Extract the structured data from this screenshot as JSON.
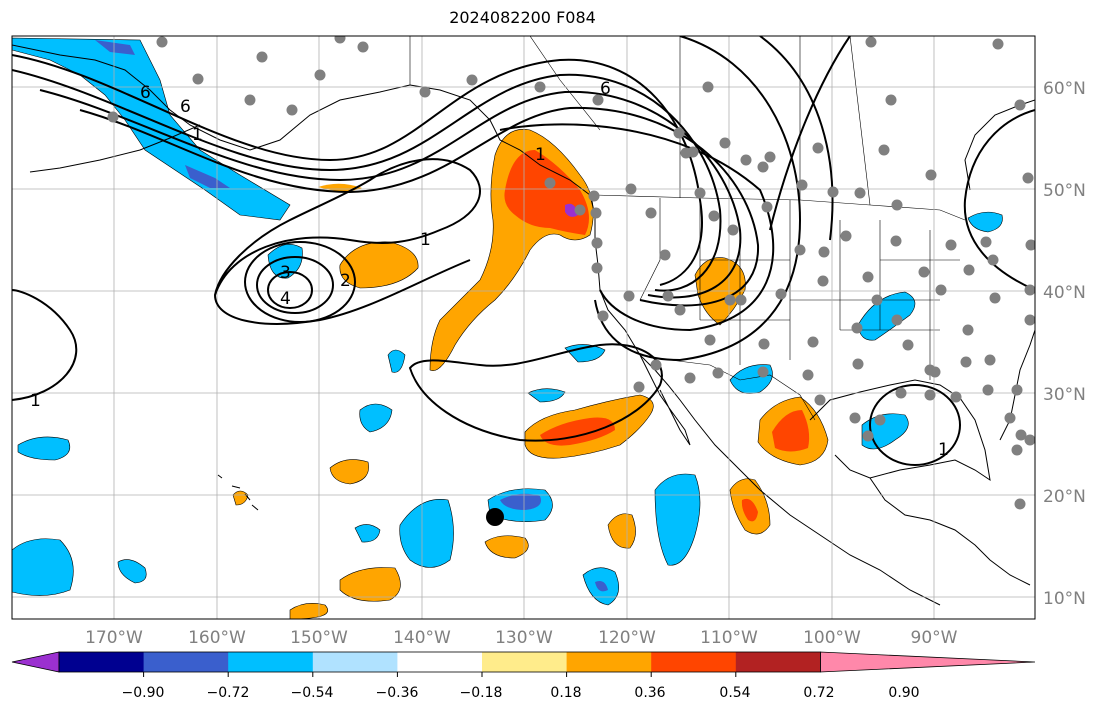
{
  "title": "2024082200 F084",
  "lat_labels": [
    "60°N",
    "50°N",
    "40°N",
    "30°N",
    "20°N",
    "10°N"
  ],
  "lon_labels": [
    "170°W",
    "160°W",
    "150°W",
    "140°W",
    "130°W",
    "120°W",
    "110°W",
    "100°W",
    "90°W"
  ],
  "colorbar": {
    "ticks": [
      "−0.90",
      "−0.72",
      "−0.54",
      "−0.36",
      "−0.18",
      "0.18",
      "0.36",
      "0.54",
      "0.72",
      "0.90"
    ],
    "colors": [
      "#9b30d0",
      "#000090",
      "#3a5fcd",
      "#00bfff",
      "#b0e2ff",
      "#ffffff",
      "#ffec8b",
      "#ffa500",
      "#ff4500",
      "#b22222",
      "#ff88aa"
    ]
  },
  "contour_labels": [
    "6",
    "6",
    "6",
    "1",
    "1",
    "1",
    "3",
    "4",
    "2",
    "1",
    "1"
  ],
  "colors": {
    "dot": "#808080",
    "marker": "#000000",
    "grid": "#b0b0b0"
  }
}
